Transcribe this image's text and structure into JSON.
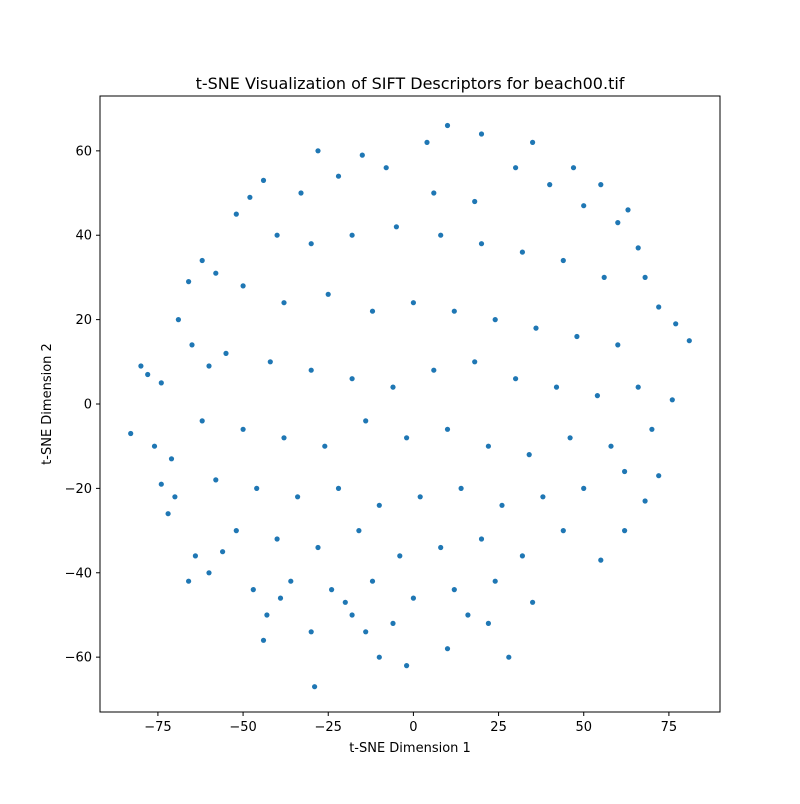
{
  "chart_data": {
    "type": "scatter",
    "title": "t-SNE Visualization of SIFT Descriptors for beach00.tif",
    "xlabel": "t-SNE Dimension 1",
    "ylabel": "t-SNE Dimension 2",
    "xlim": [
      -92,
      90
    ],
    "ylim": [
      -73,
      73
    ],
    "xticks": [
      -75,
      -50,
      -25,
      0,
      25,
      50,
      75
    ],
    "yticks": [
      -60,
      -40,
      -20,
      0,
      20,
      40,
      60
    ],
    "xtick_labels": [
      "−75",
      "−50",
      "−25",
      "0",
      "25",
      "50",
      "75"
    ],
    "ytick_labels": [
      "−60",
      "−40",
      "−20",
      "0",
      "20",
      "40",
      "60"
    ],
    "grid": false,
    "legend": "none",
    "marker_color": "#1f77b4",
    "series": [
      {
        "x_range": [
          -83,
          81
        ],
        "y_range": [
          -67,
          66
        ],
        "distribution": "roughly circular cloud centered near (0, 0), radius about 75",
        "points": [
          [
            10,
            66
          ],
          [
            20,
            64
          ],
          [
            -28,
            60
          ],
          [
            35,
            62
          ],
          [
            -15,
            59
          ],
          [
            4,
            62
          ],
          [
            -44,
            53
          ],
          [
            -48,
            49
          ],
          [
            -52,
            45
          ],
          [
            47,
            56
          ],
          [
            55,
            52
          ],
          [
            63,
            46
          ],
          [
            -62,
            34
          ],
          [
            -66,
            29
          ],
          [
            -58,
            31
          ],
          [
            -69,
            20
          ],
          [
            -65,
            14
          ],
          [
            -60,
            9
          ],
          [
            -78,
            7
          ],
          [
            -80,
            9
          ],
          [
            -74,
            5
          ],
          [
            -83,
            -7
          ],
          [
            -76,
            -10
          ],
          [
            -71,
            -13
          ],
          [
            -74,
            -19
          ],
          [
            -70,
            -22
          ],
          [
            -72,
            -26
          ],
          [
            -64,
            -36
          ],
          [
            -60,
            -40
          ],
          [
            -66,
            -42
          ],
          [
            -56,
            -35
          ],
          [
            -47,
            -44
          ],
          [
            -43,
            -50
          ],
          [
            -39,
            -46
          ],
          [
            -44,
            -56
          ],
          [
            -18,
            -50
          ],
          [
            -14,
            -54
          ],
          [
            -20,
            -47
          ],
          [
            -29,
            -67
          ],
          [
            -10,
            -60
          ],
          [
            -2,
            -62
          ],
          [
            10,
            -58
          ],
          [
            28,
            -60
          ],
          [
            22,
            -52
          ],
          [
            35,
            -47
          ],
          [
            55,
            -37
          ],
          [
            62,
            -30
          ],
          [
            68,
            -23
          ],
          [
            72,
            -17
          ],
          [
            70,
            -6
          ],
          [
            76,
            1
          ],
          [
            81,
            15
          ],
          [
            77,
            19
          ],
          [
            72,
            23
          ],
          [
            68,
            30
          ],
          [
            66,
            37
          ],
          [
            60,
            43
          ],
          [
            50,
            47
          ],
          [
            40,
            52
          ],
          [
            30,
            56
          ],
          [
            -33,
            50
          ],
          [
            -22,
            54
          ],
          [
            -8,
            56
          ],
          [
            6,
            50
          ],
          [
            18,
            48
          ],
          [
            -40,
            40
          ],
          [
            -30,
            38
          ],
          [
            -18,
            40
          ],
          [
            -5,
            42
          ],
          [
            8,
            40
          ],
          [
            20,
            38
          ],
          [
            32,
            36
          ],
          [
            44,
            34
          ],
          [
            56,
            30
          ],
          [
            -50,
            28
          ],
          [
            -38,
            24
          ],
          [
            -25,
            26
          ],
          [
            -12,
            22
          ],
          [
            0,
            24
          ],
          [
            12,
            22
          ],
          [
            24,
            20
          ],
          [
            36,
            18
          ],
          [
            48,
            16
          ],
          [
            60,
            14
          ],
          [
            -55,
            12
          ],
          [
            -42,
            10
          ],
          [
            -30,
            8
          ],
          [
            -18,
            6
          ],
          [
            -6,
            4
          ],
          [
            6,
            8
          ],
          [
            18,
            10
          ],
          [
            30,
            6
          ],
          [
            42,
            4
          ],
          [
            54,
            2
          ],
          [
            66,
            4
          ],
          [
            -62,
            -4
          ],
          [
            -50,
            -6
          ],
          [
            -38,
            -8
          ],
          [
            -26,
            -10
          ],
          [
            -14,
            -4
          ],
          [
            -2,
            -8
          ],
          [
            10,
            -6
          ],
          [
            22,
            -10
          ],
          [
            34,
            -12
          ],
          [
            46,
            -8
          ],
          [
            58,
            -10
          ],
          [
            -58,
            -18
          ],
          [
            -46,
            -20
          ],
          [
            -34,
            -22
          ],
          [
            -22,
            -20
          ],
          [
            -10,
            -24
          ],
          [
            2,
            -22
          ],
          [
            14,
            -20
          ],
          [
            26,
            -24
          ],
          [
            38,
            -22
          ],
          [
            50,
            -20
          ],
          [
            62,
            -16
          ],
          [
            -52,
            -30
          ],
          [
            -40,
            -32
          ],
          [
            -28,
            -34
          ],
          [
            -16,
            -30
          ],
          [
            -4,
            -36
          ],
          [
            8,
            -34
          ],
          [
            20,
            -32
          ],
          [
            32,
            -36
          ],
          [
            44,
            -30
          ],
          [
            -36,
            -42
          ],
          [
            -24,
            -44
          ],
          [
            -12,
            -42
          ],
          [
            0,
            -46
          ],
          [
            12,
            -44
          ],
          [
            24,
            -42
          ],
          [
            -30,
            -54
          ],
          [
            -6,
            -52
          ],
          [
            16,
            -50
          ]
        ]
      }
    ]
  }
}
